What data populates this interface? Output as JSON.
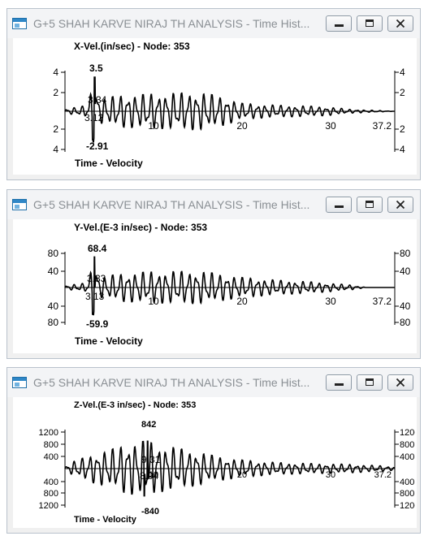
{
  "windows": [
    {
      "title": "G+5 SHAH KARVE NIRAJ TH ANALYSIS - Time Hist...",
      "chart_title": "X-Vel.(in/sec) - Node: 353",
      "footer": "Time - Velocity",
      "y_ticks_left": [
        "4",
        "2",
        "2",
        "4"
      ],
      "y_ticks_right": [
        "4",
        "2",
        "2",
        "4"
      ],
      "x_ticks": [
        "10",
        "20",
        "30"
      ],
      "x_end_label": "37.2",
      "max_label": "3.5",
      "max_time_label": "3.34",
      "min_label": "-2.91",
      "min_time_label": "3.12"
    },
    {
      "title": "G+5 SHAH KARVE NIRAJ TH ANALYSIS - Time Hist...",
      "chart_title": "Y-Vel.(E-3 in/sec) - Node: 353",
      "footer": "Time - Velocity",
      "y_ticks_left": [
        "80",
        "40",
        "40",
        "80"
      ],
      "y_ticks_right": [
        "80",
        "40",
        "40",
        "80"
      ],
      "x_ticks": [
        "10",
        "20",
        "30"
      ],
      "x_end_label": "37.2",
      "max_label": "68.4",
      "max_time_label": "3.33",
      "min_label": "-59.9",
      "min_time_label": "3.13"
    },
    {
      "title": "G+5 SHAH KARVE NIRAJ TH ANALYSIS - Time Hist...",
      "chart_title": "Z-Vel.(E-3 in/sec) - Node: 353",
      "footer": "Time - Velocity",
      "y_ticks_left": [
        "1200",
        "800",
        "400",
        "400",
        "800",
        "1200"
      ],
      "y_ticks_right": [
        "1200",
        "800",
        "400",
        "400",
        "800",
        "1200"
      ],
      "x_ticks": [
        "10",
        "20",
        "30"
      ],
      "x_end_label": "37.2",
      "max_label": "842",
      "max_time_label": "9.31",
      "min_label": "-840",
      "min_time_label": "8.94"
    }
  ],
  "chart_data": [
    {
      "type": "line",
      "xlabel": "Time",
      "ylabel": "Velocity",
      "xlim": [
        0,
        37.2
      ],
      "ylim": [
        -4,
        4
      ],
      "peak_max": {
        "time": 3.34,
        "value": 3.5
      },
      "peak_min": {
        "time": 3.12,
        "value": -2.91
      },
      "series": [
        {
          "profile": [
            [
              0,
              0.2
            ],
            [
              2.5,
              0.6
            ],
            [
              3.2,
              3.2
            ],
            [
              4,
              1.2
            ],
            [
              6,
              1.6
            ],
            [
              9,
              1.7
            ],
            [
              12,
              1.8
            ],
            [
              14,
              1.9
            ],
            [
              16,
              1.8
            ],
            [
              18,
              1.4
            ],
            [
              20,
              0.8
            ],
            [
              24,
              0.6
            ],
            [
              28,
              0.5
            ],
            [
              30,
              0.4
            ],
            [
              32,
              0.2
            ],
            [
              37.2,
              0
            ]
          ]
        }
      ]
    },
    {
      "type": "line",
      "xlabel": "Time",
      "ylabel": "Velocity",
      "xlim": [
        0,
        37.2
      ],
      "ylim": [
        -80,
        80
      ],
      "peak_max": {
        "time": 3.33,
        "value": 68.4
      },
      "peak_min": {
        "time": 3.13,
        "value": -59.9
      },
      "series": [
        {
          "profile": [
            [
              0,
              4
            ],
            [
              2.5,
              10
            ],
            [
              3.2,
              62
            ],
            [
              4,
              22
            ],
            [
              6,
              30
            ],
            [
              9,
              34
            ],
            [
              12,
              35
            ],
            [
              14,
              36
            ],
            [
              16,
              34
            ],
            [
              18,
              28
            ],
            [
              20,
              22
            ],
            [
              24,
              16
            ],
            [
              28,
              12
            ],
            [
              32,
              6
            ],
            [
              34,
              0
            ],
            [
              37.2,
              0
            ]
          ]
        }
      ]
    },
    {
      "type": "line",
      "xlabel": "Time",
      "ylabel": "Velocity",
      "xlim": [
        0,
        37.2
      ],
      "ylim": [
        -1200,
        1200
      ],
      "peak_max": {
        "time": 9.31,
        "value": 842
      },
      "peak_min": {
        "time": 8.94,
        "value": -840
      },
      "series": [
        {
          "profile": [
            [
              0,
              60
            ],
            [
              1,
              220
            ],
            [
              3,
              420
            ],
            [
              5,
              560
            ],
            [
              7,
              760
            ],
            [
              9,
              840
            ],
            [
              11,
              700
            ],
            [
              14,
              560
            ],
            [
              17,
              380
            ],
            [
              20,
              260
            ],
            [
              24,
              180
            ],
            [
              28,
              150
            ],
            [
              32,
              130
            ],
            [
              36,
              80
            ],
            [
              37.2,
              40
            ]
          ]
        }
      ]
    }
  ]
}
